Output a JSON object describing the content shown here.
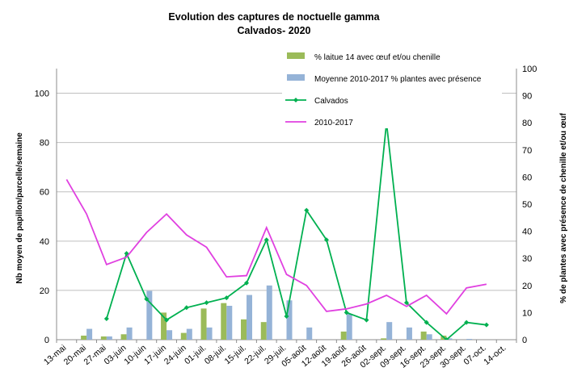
{
  "chart_data": {
    "type": "bar",
    "title": "Evolution des captures de noctuelle gamma",
    "subtitle": "Calvados- 2020",
    "ylabel": "Nb moyen de papillon/parcelle/semaine",
    "y2label": "% de plantes avec présence de chenille et/ou œuf",
    "ylim": [
      0,
      110
    ],
    "y2lim": [
      0,
      100
    ],
    "yticks": [
      0,
      20,
      40,
      60,
      80,
      100
    ],
    "y2ticks": [
      0,
      10,
      20,
      30,
      40,
      50,
      60,
      70,
      80,
      90,
      100
    ],
    "grid": true,
    "legend_position": "top-right",
    "categories": [
      "13-mai",
      "20-mai",
      "27-mai",
      "03-juin",
      "10-juin",
      "17-juin",
      "24-juin",
      "01-juil.",
      "08-juil.",
      "15-juil.",
      "22-juil.",
      "29-juil.",
      "05-août",
      "12-août",
      "19-août",
      "26-août",
      "02-sept.",
      "09-sept.",
      "16-sept.",
      "23-sept.",
      "30-sept.",
      "07-oct.",
      "14-oct."
    ],
    "series": [
      {
        "name": "% laitue 14 avec œuf et/ou chenille",
        "type": "bar",
        "axis": "y2",
        "color": "#9bbb59",
        "values": [
          null,
          1.5,
          1.2,
          2,
          null,
          10,
          2.5,
          11.5,
          13.5,
          7.5,
          6.5,
          null,
          null,
          null,
          3,
          null,
          0.5,
          null,
          3,
          1.5,
          null,
          null,
          null
        ]
      },
      {
        "name": "Moyenne 2010-2017 % plantes avec présence",
        "type": "bar",
        "axis": "y2",
        "color": "#95b3d7",
        "values": [
          null,
          4,
          1.2,
          4.5,
          18,
          3.5,
          4,
          4.5,
          12.5,
          16.5,
          20,
          14.5,
          4.5,
          null,
          9.5,
          null,
          6.5,
          4.5,
          2,
          0.5,
          0.3,
          null,
          null
        ]
      },
      {
        "name": "Calvados",
        "type": "line",
        "axis": "y",
        "color": "#00b050",
        "values": [
          null,
          null,
          8.5,
          35,
          16.5,
          8,
          13,
          15,
          17,
          23,
          40.5,
          9.5,
          52.5,
          40.5,
          11,
          8,
          88,
          15,
          7,
          0,
          7,
          6,
          null
        ]
      },
      {
        "name": "2010-2017",
        "type": "line",
        "axis": "y",
        "color": "#e040e0",
        "values": [
          65,
          51,
          30.5,
          33.5,
          43.5,
          51,
          42.5,
          37.5,
          25.5,
          26,
          45.5,
          26.5,
          22,
          11.5,
          12.5,
          14.5,
          18,
          13.5,
          18,
          10.5,
          21,
          22.5,
          null
        ]
      }
    ]
  }
}
